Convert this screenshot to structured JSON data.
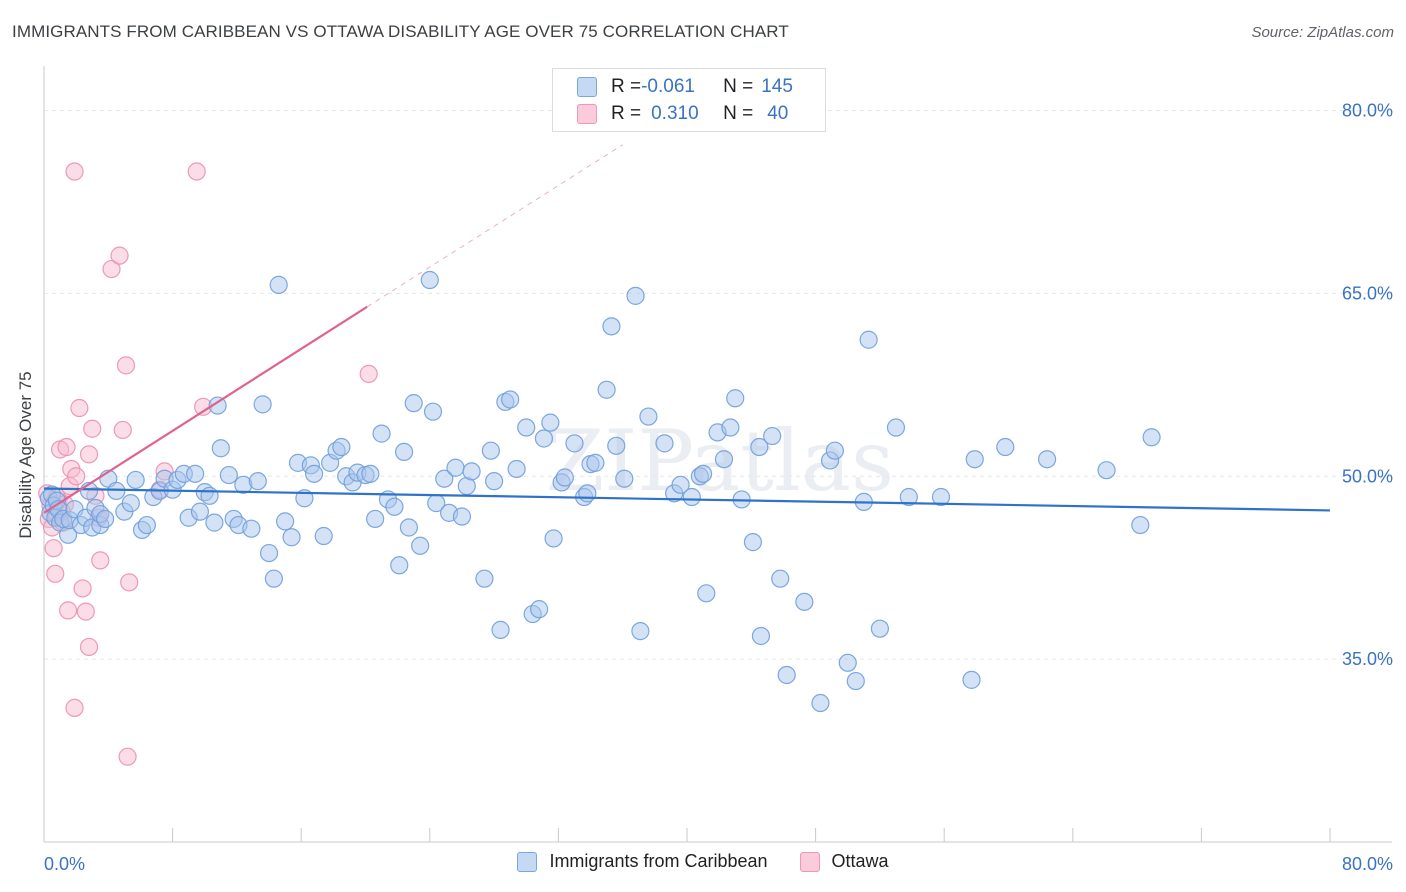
{
  "header": {
    "title": "IMMIGRANTS FROM CARIBBEAN VS OTTAWA DISABILITY AGE OVER 75 CORRELATION CHART",
    "source": "Source: ZipAtlas.com"
  },
  "legend": {
    "rows": [
      {
        "r_label": "R = ",
        "r_value": "-0.061",
        "n_label": "N = ",
        "n_value": "145"
      },
      {
        "r_label": "R = ",
        "r_value": "0.310",
        "n_label": "N = ",
        "n_value": "40"
      }
    ]
  },
  "bottom_legend": {
    "items": [
      "Immigrants from Caribbean",
      "Ottawa"
    ]
  },
  "colors": {
    "blue_fill": "#a9c6ec",
    "blue_stroke": "#6f9fdc",
    "blue_line": "#2f72c9",
    "pink_fill": "#f6bcd0",
    "pink_stroke": "#ec8fb0",
    "pink_line": "#e0638f",
    "axis_text": "#3a72c4",
    "grid": "#e4e6ea"
  },
  "chart_data": {
    "type": "scatter",
    "title": "IMMIGRANTS FROM CARIBBEAN VS OTTAWA DISABILITY AGE OVER 75 CORRELATION CHART",
    "xlabel": "",
    "ylabel": "Disability Age Over 75",
    "xlim": [
      0,
      80
    ],
    "ylim": [
      20,
      83
    ],
    "x_tick_labels": [
      "0.0%",
      "80.0%"
    ],
    "y_ticks": [
      35,
      50,
      65,
      80
    ],
    "y_tick_labels": [
      "35.0%",
      "50.0%",
      "65.0%",
      "80.0%"
    ],
    "grid": true,
    "legend_position": "top-center",
    "watermark": "ZIPatlas",
    "series": [
      {
        "name": "Immigrants from Caribbean",
        "r": -0.061,
        "n": 145,
        "trend": {
          "x": [
            0,
            80
          ],
          "y": [
            49.0,
            47.2
          ]
        },
        "points": [
          [
            0.3,
            48.2
          ],
          [
            0.4,
            47.0
          ],
          [
            0.5,
            48.5
          ],
          [
            0.6,
            47.6
          ],
          [
            0.7,
            46.6
          ],
          [
            0.8,
            48.0
          ],
          [
            0.9,
            47.3
          ],
          [
            1.0,
            46.2
          ],
          [
            1.2,
            46.5
          ],
          [
            1.5,
            45.2
          ],
          [
            1.6,
            46.4
          ],
          [
            1.9,
            47.3
          ],
          [
            2.3,
            46.0
          ],
          [
            2.6,
            46.6
          ],
          [
            2.8,
            48.8
          ],
          [
            3.0,
            45.8
          ],
          [
            3.2,
            47.4
          ],
          [
            3.5,
            46.0
          ],
          [
            3.5,
            46.9
          ],
          [
            3.8,
            46.5
          ],
          [
            4.0,
            49.8
          ],
          [
            4.5,
            48.8
          ],
          [
            5.0,
            47.1
          ],
          [
            5.4,
            47.8
          ],
          [
            5.7,
            49.7
          ],
          [
            6.1,
            45.6
          ],
          [
            6.4,
            46.0
          ],
          [
            6.8,
            48.3
          ],
          [
            7.2,
            48.8
          ],
          [
            7.5,
            49.8
          ],
          [
            8.0,
            48.9
          ],
          [
            8.3,
            49.7
          ],
          [
            8.7,
            50.2
          ],
          [
            9.0,
            46.6
          ],
          [
            9.4,
            50.2
          ],
          [
            9.7,
            47.1
          ],
          [
            10.0,
            48.7
          ],
          [
            10.3,
            48.4
          ],
          [
            10.6,
            46.2
          ],
          [
            10.8,
            55.8
          ],
          [
            11.0,
            52.3
          ],
          [
            11.5,
            50.1
          ],
          [
            11.8,
            46.5
          ],
          [
            12.1,
            46.0
          ],
          [
            12.4,
            49.3
          ],
          [
            12.9,
            45.7
          ],
          [
            13.3,
            49.6
          ],
          [
            13.6,
            55.9
          ],
          [
            14.0,
            43.7
          ],
          [
            14.3,
            41.6
          ],
          [
            14.6,
            65.7
          ],
          [
            15.0,
            46.3
          ],
          [
            15.4,
            45.0
          ],
          [
            15.8,
            51.1
          ],
          [
            16.2,
            48.2
          ],
          [
            16.6,
            50.9
          ],
          [
            16.8,
            50.2
          ],
          [
            17.4,
            45.1
          ],
          [
            17.8,
            51.1
          ],
          [
            18.2,
            52.1
          ],
          [
            18.5,
            52.4
          ],
          [
            18.8,
            50.0
          ],
          [
            19.2,
            49.5
          ],
          [
            19.5,
            50.3
          ],
          [
            20.0,
            50.1
          ],
          [
            20.3,
            50.2
          ],
          [
            20.6,
            46.5
          ],
          [
            21.0,
            53.5
          ],
          [
            21.4,
            48.1
          ],
          [
            21.8,
            47.5
          ],
          [
            22.1,
            42.7
          ],
          [
            22.4,
            52.0
          ],
          [
            22.7,
            45.8
          ],
          [
            23.0,
            56.0
          ],
          [
            23.4,
            44.3
          ],
          [
            24.0,
            66.1
          ],
          [
            24.2,
            55.3
          ],
          [
            24.4,
            47.8
          ],
          [
            24.9,
            49.8
          ],
          [
            25.2,
            47.0
          ],
          [
            25.6,
            50.7
          ],
          [
            26.0,
            46.7
          ],
          [
            26.3,
            49.2
          ],
          [
            26.6,
            50.4
          ],
          [
            27.4,
            41.6
          ],
          [
            27.8,
            52.1
          ],
          [
            28.0,
            49.6
          ],
          [
            28.4,
            37.4
          ],
          [
            28.7,
            56.1
          ],
          [
            29.0,
            56.3
          ],
          [
            29.4,
            50.6
          ],
          [
            30.0,
            54.0
          ],
          [
            30.4,
            38.7
          ],
          [
            30.8,
            39.1
          ],
          [
            31.1,
            53.1
          ],
          [
            31.5,
            54.4
          ],
          [
            31.7,
            44.9
          ],
          [
            32.2,
            49.5
          ],
          [
            32.4,
            49.9
          ],
          [
            33.0,
            52.7
          ],
          [
            33.6,
            48.3
          ],
          [
            33.8,
            48.6
          ],
          [
            34.0,
            51.0
          ],
          [
            34.3,
            51.1
          ],
          [
            35.0,
            57.1
          ],
          [
            35.3,
            62.3
          ],
          [
            35.6,
            52.5
          ],
          [
            36.1,
            49.8
          ],
          [
            36.8,
            64.8
          ],
          [
            37.1,
            37.3
          ],
          [
            37.6,
            54.9
          ],
          [
            38.6,
            52.7
          ],
          [
            39.2,
            48.6
          ],
          [
            39.6,
            49.3
          ],
          [
            40.3,
            48.3
          ],
          [
            40.8,
            50.0
          ],
          [
            41.0,
            50.2
          ],
          [
            41.2,
            40.4
          ],
          [
            41.9,
            53.6
          ],
          [
            42.3,
            51.4
          ],
          [
            42.7,
            54.0
          ],
          [
            43.0,
            56.4
          ],
          [
            43.4,
            48.1
          ],
          [
            44.1,
            44.6
          ],
          [
            44.5,
            52.4
          ],
          [
            44.6,
            36.9
          ],
          [
            45.3,
            53.3
          ],
          [
            45.8,
            41.6
          ],
          [
            46.2,
            33.7
          ],
          [
            47.3,
            39.7
          ],
          [
            48.3,
            31.4
          ],
          [
            48.9,
            51.3
          ],
          [
            49.2,
            52.1
          ],
          [
            50.0,
            34.7
          ],
          [
            50.5,
            33.2
          ],
          [
            51.0,
            47.9
          ],
          [
            51.3,
            61.2
          ],
          [
            52.0,
            37.5
          ],
          [
            53.0,
            54.0
          ],
          [
            53.8,
            48.3
          ],
          [
            55.8,
            48.3
          ],
          [
            57.7,
            33.3
          ],
          [
            57.9,
            51.4
          ],
          [
            59.8,
            52.4
          ],
          [
            62.4,
            51.4
          ],
          [
            66.1,
            50.5
          ],
          [
            68.2,
            46.0
          ],
          [
            68.9,
            53.2
          ]
        ]
      },
      {
        "name": "Ottawa",
        "r": 0.31,
        "n": 40,
        "trend": {
          "x": [
            0,
            20.1
          ],
          "y": [
            47.0,
            63.9
          ],
          "dashed_extension": {
            "x": [
              20.1,
              36
            ],
            "y": [
              63.9,
              77.2
            ]
          }
        },
        "points": [
          [
            0.2,
            48.6
          ],
          [
            0.3,
            46.5
          ],
          [
            0.4,
            47.6
          ],
          [
            0.5,
            45.8
          ],
          [
            0.6,
            44.1
          ],
          [
            0.7,
            42.0
          ],
          [
            0.8,
            46.8
          ],
          [
            0.9,
            48.0
          ],
          [
            1.0,
            52.2
          ],
          [
            1.2,
            46.2
          ],
          [
            1.3,
            47.7
          ],
          [
            1.4,
            52.4
          ],
          [
            1.5,
            39.0
          ],
          [
            1.6,
            49.2
          ],
          [
            1.7,
            50.6
          ],
          [
            1.9,
            75.0
          ],
          [
            1.9,
            31.0
          ],
          [
            2.0,
            50.0
          ],
          [
            2.2,
            55.6
          ],
          [
            2.4,
            40.8
          ],
          [
            2.6,
            38.9
          ],
          [
            2.8,
            51.8
          ],
          [
            2.8,
            36.0
          ],
          [
            3.0,
            53.9
          ],
          [
            3.2,
            48.4
          ],
          [
            3.4,
            46.6
          ],
          [
            3.5,
            43.1
          ],
          [
            4.2,
            67.0
          ],
          [
            4.7,
            68.1
          ],
          [
            4.9,
            53.8
          ],
          [
            5.1,
            59.1
          ],
          [
            5.2,
            27.0
          ],
          [
            5.3,
            41.3
          ],
          [
            7.2,
            48.9
          ],
          [
            7.5,
            50.4
          ],
          [
            9.5,
            75.0
          ],
          [
            9.9,
            55.7
          ],
          [
            20.2,
            58.4
          ],
          [
            0.8,
            48.3
          ],
          [
            1.1,
            47.1
          ]
        ]
      }
    ]
  }
}
